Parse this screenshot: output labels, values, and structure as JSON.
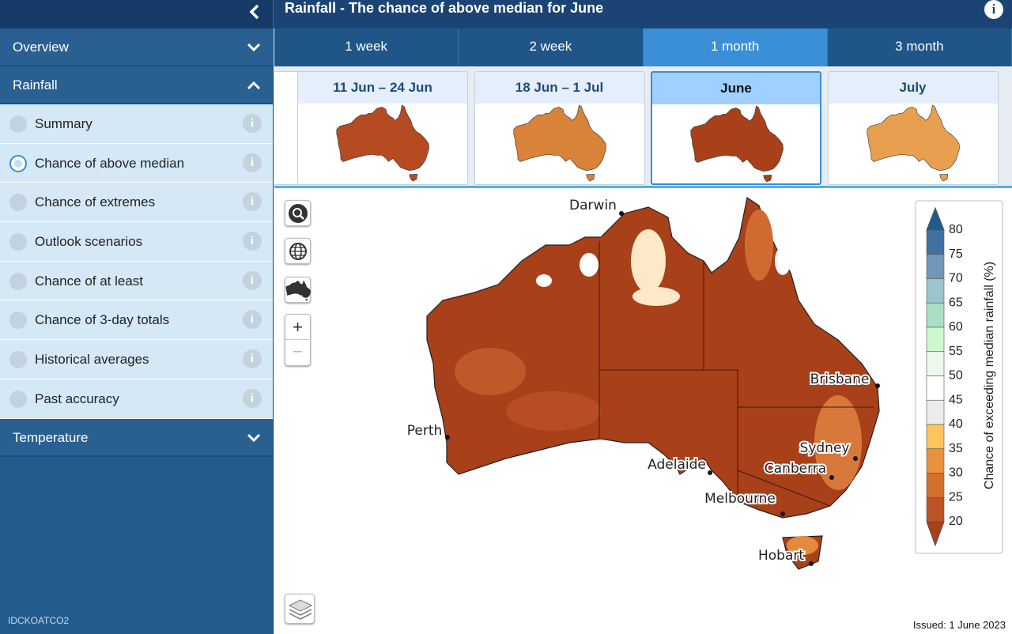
{
  "header": {
    "title": "Rainfall - The chance of above median for June"
  },
  "sidebar": {
    "sections": [
      {
        "label": "Overview",
        "expanded": false
      },
      {
        "label": "Rainfall",
        "expanded": true,
        "selected": 1,
        "items": [
          "Summary",
          "Chance of above median",
          "Chance of extremes",
          "Outlook scenarios",
          "Chance of at least",
          "Chance of 3-day totals",
          "Historical averages",
          "Past accuracy"
        ]
      },
      {
        "label": "Temperature",
        "expanded": false
      }
    ],
    "footer_code": "IDCKOATCO2"
  },
  "tabs": {
    "items": [
      "1 week",
      "2 week",
      "1 month",
      "3 month"
    ],
    "active": 2
  },
  "thumbnails": {
    "items": [
      "11 Jun – 24 Jun",
      "18 Jun – 1 Jul",
      "June",
      "July"
    ],
    "active": 2
  },
  "map": {
    "cities": [
      "Darwin",
      "Brisbane",
      "Perth",
      "Sydney",
      "Adelaide",
      "Canberra",
      "Melbourne",
      "Hobart"
    ]
  },
  "legend": {
    "label": "Chance of exceeding median rainfall (%)",
    "ticks": [
      80,
      75,
      70,
      65,
      60,
      55,
      50,
      45,
      40,
      35,
      30,
      25,
      20
    ],
    "colors": [
      "#235a8c",
      "#3f72a3",
      "#6f98bb",
      "#9cc4cf",
      "#a9e0c2",
      "#cdf8cd",
      "#eef6ee",
      "#ffffff",
      "#ececec",
      "#fdc35e",
      "#e8923e",
      "#d4702e",
      "#bd5425",
      "#a8401a"
    ]
  },
  "issued": "Issued: 1 June 2023"
}
